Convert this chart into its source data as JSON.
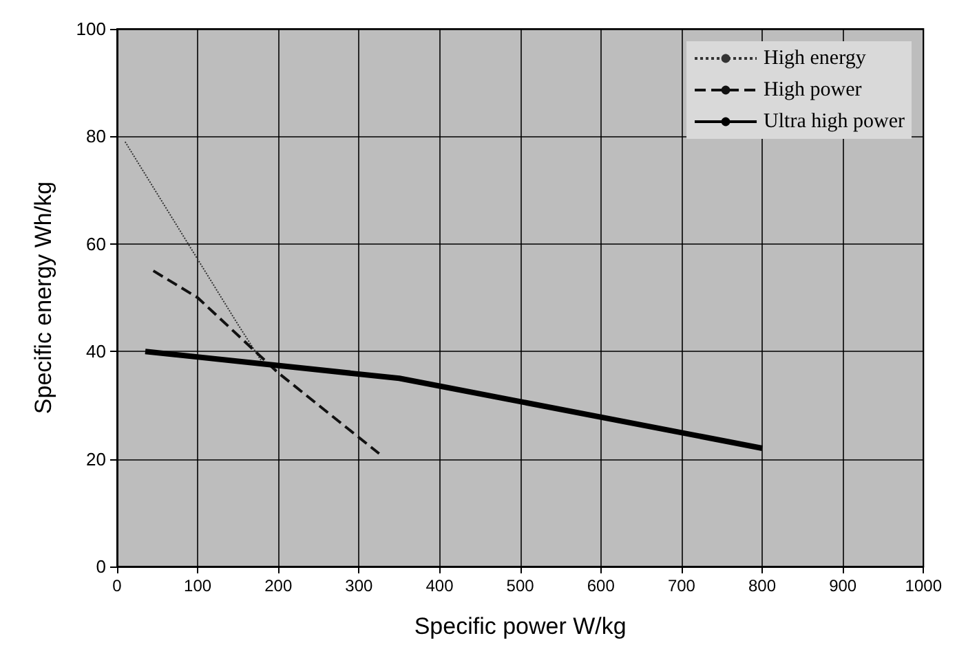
{
  "chart_data": {
    "type": "line",
    "xlabel": "Specific power W/kg",
    "ylabel": "Specific energy Wh/kg",
    "xlim": [
      0,
      1000
    ],
    "xticks": [
      0,
      100,
      200,
      300,
      400,
      500,
      600,
      700,
      800,
      900,
      1000
    ],
    "ylim": [
      0,
      100
    ],
    "yticks": [
      0,
      20,
      40,
      60,
      80,
      100
    ],
    "series": [
      {
        "name": "High energy",
        "color": "#333333",
        "line_style": "dotted",
        "x": [
          10,
          150,
          180
        ],
        "values": [
          79,
          45,
          38
        ]
      },
      {
        "name": "High power",
        "color": "#111111",
        "line_style": "dashed",
        "x": [
          45,
          100,
          200,
          325
        ],
        "values": [
          55,
          50,
          36,
          21
        ]
      },
      {
        "name": "Ultra high power",
        "color": "#000000",
        "line_style": "solid",
        "x": [
          35,
          350,
          800
        ],
        "values": [
          40,
          35,
          22
        ]
      }
    ],
    "grid": true,
    "legend": "top right",
    "marker": "none"
  }
}
